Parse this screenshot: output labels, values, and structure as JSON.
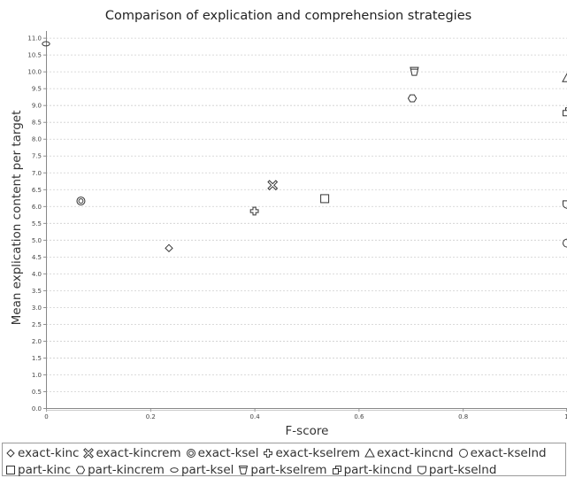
{
  "chart_data": {
    "type": "scatter",
    "title": "Comparison of explication and comprehension strategies",
    "xlabel": "F-score",
    "ylabel": "Mean explication content per target",
    "xlim": [
      0,
      1.0
    ],
    "ylim": [
      0,
      11.2
    ],
    "x_ticks": [
      "0",
      "0.2",
      "0.4",
      "0.6",
      "0.8",
      "1"
    ],
    "y_ticks": [
      "0.0",
      "0.5",
      "1.0",
      "1.5",
      "2.0",
      "2.5",
      "3.0",
      "3.5",
      "4.0",
      "4.5",
      "5.0",
      "5.5",
      "6.0",
      "6.5",
      "7.0",
      "7.5",
      "8.0",
      "8.5",
      "9.0",
      "9.5",
      "10.0",
      "10.5",
      "11.0"
    ],
    "grid": "horizontal",
    "legend_position": "bottom",
    "series": [
      {
        "name": "exact-kinc",
        "marker": "diamond",
        "x": [
          0.236
        ],
        "y": [
          4.75
        ]
      },
      {
        "name": "exact-kincrem",
        "marker": "cross-x",
        "x": [
          0.435
        ],
        "y": [
          6.62
        ]
      },
      {
        "name": "exact-ksel",
        "marker": "double-circle",
        "x": [
          0.067
        ],
        "y": [
          6.15
        ]
      },
      {
        "name": "exact-kselrem",
        "marker": "plus",
        "x": [
          0.4
        ],
        "y": [
          5.85
        ]
      },
      {
        "name": "exact-kincnd",
        "marker": "triangle",
        "x": [
          1.0
        ],
        "y": [
          9.8
        ]
      },
      {
        "name": "exact-kselnd",
        "marker": "circle",
        "x": [
          1.0
        ],
        "y": [
          4.9
        ]
      },
      {
        "name": "part-kinc",
        "marker": "square",
        "x": [
          0.535
        ],
        "y": [
          6.22
        ]
      },
      {
        "name": "part-kincrem",
        "marker": "hexagon",
        "x": [
          0.703
        ],
        "y": [
          9.2
        ]
      },
      {
        "name": "part-ksel",
        "marker": "oval",
        "x": [
          0.0
        ],
        "y": [
          10.82
        ]
      },
      {
        "name": "part-kselrem",
        "marker": "trapezoid",
        "x": [
          0.707
        ],
        "y": [
          10.0
        ]
      },
      {
        "name": "part-kincnd",
        "marker": "double-square",
        "x": [
          1.0
        ],
        "y": [
          8.8
        ]
      },
      {
        "name": "part-kselnd",
        "marker": "shield",
        "x": [
          1.0
        ],
        "y": [
          6.05
        ]
      }
    ]
  }
}
